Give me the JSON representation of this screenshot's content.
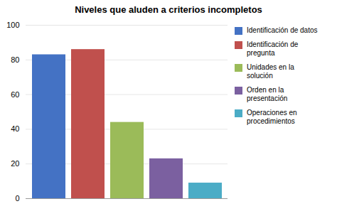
{
  "chart_data": {
    "type": "bar",
    "title": "Niveles que aluden a criterios incompletos",
    "categories": [
      "Identificación de datos",
      "Identificación de\npregunta",
      "Unidades en la\nsolución",
      "Orden en la\npresentación",
      "Operaciones en\nprocedimientos"
    ],
    "values": [
      83,
      86,
      44,
      23,
      9
    ],
    "colors": [
      "#4472C4",
      "#C0504D",
      "#9BBB59",
      "#7B60A0",
      "#4BACC6"
    ],
    "ylim": [
      0,
      100
    ],
    "yticks": [
      0,
      20,
      40,
      60,
      80,
      100
    ],
    "grid": true,
    "legend": "right",
    "tick_labels": "y"
  }
}
